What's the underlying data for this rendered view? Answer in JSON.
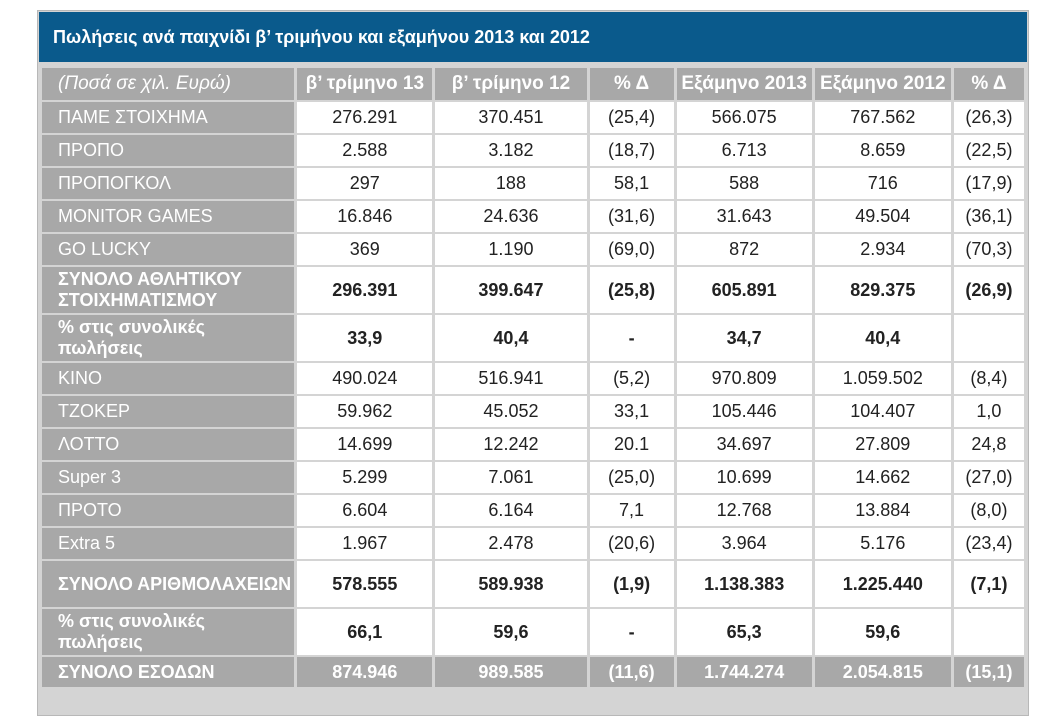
{
  "title": "Πωλήσεις ανά παιχνίδι β’ τριμήνου και εξαμήνου 2013 και 2012",
  "headers": [
    "(Ποσά σε χιλ. Ευρώ)",
    "β’ τρίμηνο 13",
    "β’ τρίμηνο 12",
    "% Δ",
    "Εξάμηνο 2013",
    "Εξάμηνο 2012",
    "% Δ"
  ],
  "rows": [
    {
      "label": "ΠΑΜΕ ΣΤΟΙΧΗΜΑ",
      "q13": "276.291",
      "q12": "370.451",
      "dq": "(25,4)",
      "h13": "566.075",
      "h12": "767.562",
      "dh": "(26,3)"
    },
    {
      "label": "ΠΡΟΠΟ",
      "q13": "2.588",
      "q12": "3.182",
      "dq": "(18,7)",
      "h13": "6.713",
      "h12": "8.659",
      "dh": "(22,5)"
    },
    {
      "label": "ΠΡΟΠΟΓΚΟΛ",
      "q13": "297",
      "q12": "188",
      "dq": "58,1",
      "h13": "588",
      "h12": "716",
      "dh": "(17,9)"
    },
    {
      "label": "MONITOR GAMES",
      "q13": "16.846",
      "q12": "24.636",
      "dq": "(31,6)",
      "h13": "31.643",
      "h12": "49.504",
      "dh": "(36,1)"
    },
    {
      "label": "GO LUCKY",
      "q13": "369",
      "q12": "1.190",
      "dq": "(69,0)",
      "h13": "872",
      "h12": "2.934",
      "dh": "(70,3)"
    },
    {
      "label": "ΣΥΝΟΛΟ ΑΘΛΗΤΙΚΟΥ ΣΤΟΙΧΗΜΑΤΙΣΜΟΥ",
      "q13": "296.391",
      "q12": "399.647",
      "dq": "(25,8)",
      "h13": "605.891",
      "h12": "829.375",
      "dh": "(26,9)"
    },
    {
      "label": "% στις συνολικές πωλήσεις",
      "q13": "33,9",
      "q12": "40,4",
      "dq": "-",
      "h13": "34,7",
      "h12": "40,4",
      "dh": ""
    },
    {
      "label": "ΚΙΝΟ",
      "q13": "490.024",
      "q12": "516.941",
      "dq": "(5,2)",
      "h13": "970.809",
      "h12": "1.059.502",
      "dh": "(8,4)"
    },
    {
      "label": "ΤΖΟΚΕΡ",
      "q13": "59.962",
      "q12": "45.052",
      "dq": "33,1",
      "h13": "105.446",
      "h12": "104.407",
      "dh": "1,0"
    },
    {
      "label": "ΛΟΤΤΟ",
      "q13": "14.699",
      "q12": "12.242",
      "dq": "20.1",
      "h13": "34.697",
      "h12": "27.809",
      "dh": "24,8"
    },
    {
      "label": "Super 3",
      "q13": "5.299",
      "q12": "7.061",
      "dq": "(25,0)",
      "h13": "10.699",
      "h12": "14.662",
      "dh": "(27,0)"
    },
    {
      "label": "ΠΡΟΤΟ",
      "q13": "6.604",
      "q12": "6.164",
      "dq": "7,1",
      "h13": "12.768",
      "h12": "13.884",
      "dh": "(8,0)"
    },
    {
      "label": "Extra 5",
      "q13": "1.967",
      "q12": "2.478",
      "dq": "(20,6)",
      "h13": "3.964",
      "h12": "5.176",
      "dh": "(23,4)"
    },
    {
      "label": "ΣΥΝΟΛΟ ΑΡΙΘΜΟΛΑΧΕΙΩΝ",
      "q13": "578.555",
      "q12": "589.938",
      "dq": "(1,9)",
      "h13": "1.138.383",
      "h12": "1.225.440",
      "dh": "(7,1)"
    },
    {
      "label": "% στις συνολικές πωλήσεις",
      "q13": "66,1",
      "q12": "59,6",
      "dq": "-",
      "h13": "65,3",
      "h12": "59,6",
      "dh": ""
    },
    {
      "label": "ΣΥΝΟΛΟ ΕΣΟΔΩΝ",
      "q13": "874.946",
      "q12": "989.585",
      "dq": "(11,6)",
      "h13": "1.744.274",
      "h12": "2.054.815",
      "dh": "(15,1)"
    }
  ],
  "colors": {
    "title_bg": "#0a5a8c",
    "label_bg": "#a8a8a8",
    "cell_bg": "#ffffff"
  }
}
